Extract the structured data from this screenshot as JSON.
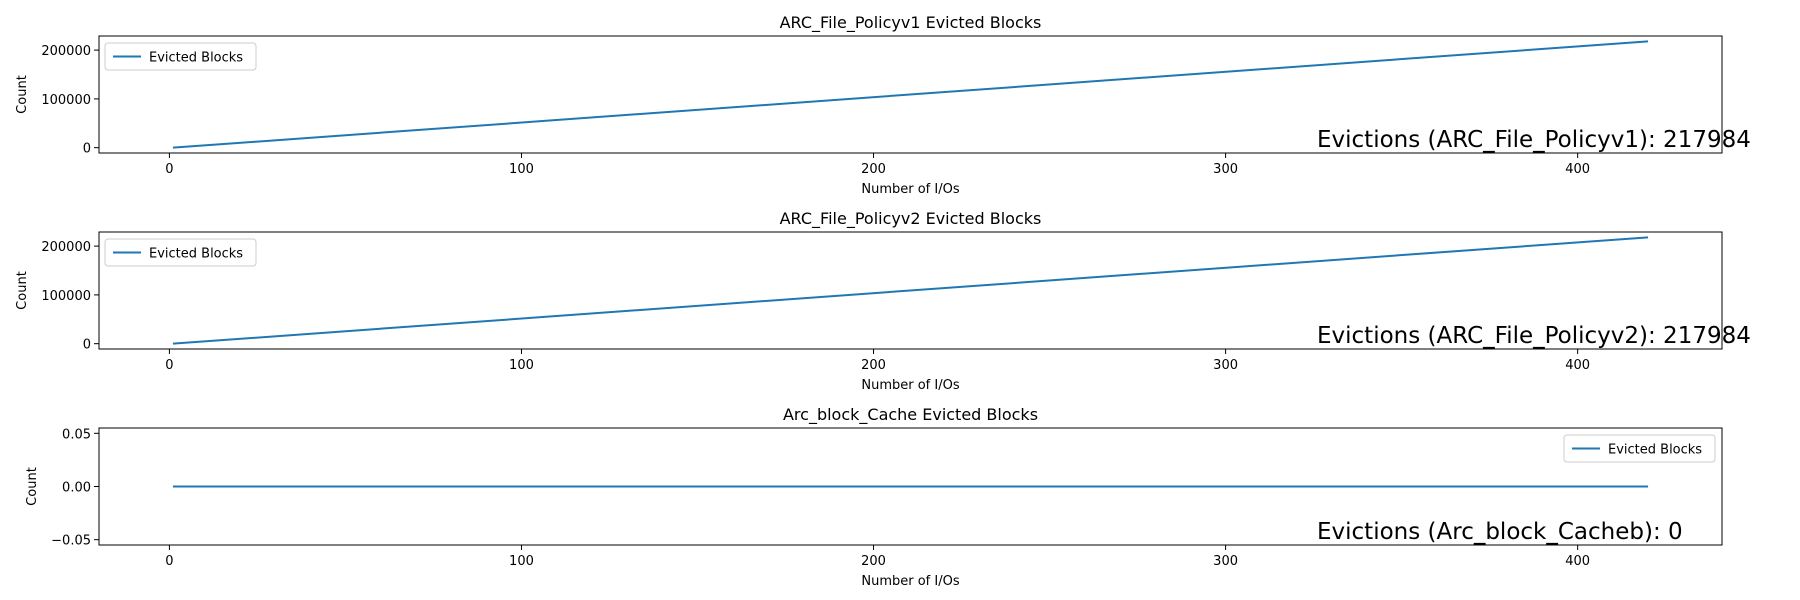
{
  "chart_data": [
    {
      "type": "line",
      "title": "ARC_File_Policyv1 Evicted Blocks",
      "xlabel": "Number of I/Os",
      "ylabel": "Count",
      "xlim": [
        -20,
        441
      ],
      "ylim": [
        -10900,
        228900
      ],
      "xticks": [
        0,
        100,
        200,
        300,
        400
      ],
      "xtick_labels": [
        "0",
        "100",
        "200",
        "300",
        "400"
      ],
      "yticks": [
        0,
        100000,
        200000
      ],
      "ytick_labels": [
        "0",
        "100000",
        "200000"
      ],
      "grid": false,
      "legend": "upper left",
      "series": [
        {
          "name": "Evicted Blocks",
          "color": "#1f77b4",
          "x": [
            1,
            420
          ],
          "y": [
            0,
            217984
          ]
        }
      ],
      "annotation": "Evictions (ARC_File_Policyv1): 217984"
    },
    {
      "type": "line",
      "title": "ARC_File_Policyv2 Evicted Blocks",
      "xlabel": "Number of I/Os",
      "ylabel": "Count",
      "xlim": [
        -20,
        441
      ],
      "ylim": [
        -10900,
        228900
      ],
      "xticks": [
        0,
        100,
        200,
        300,
        400
      ],
      "xtick_labels": [
        "0",
        "100",
        "200",
        "300",
        "400"
      ],
      "yticks": [
        0,
        100000,
        200000
      ],
      "ytick_labels": [
        "0",
        "100000",
        "200000"
      ],
      "grid": false,
      "legend": "upper left",
      "series": [
        {
          "name": "Evicted Blocks",
          "color": "#1f77b4",
          "x": [
            1,
            420
          ],
          "y": [
            0,
            217984
          ]
        }
      ],
      "annotation": "Evictions (ARC_File_Policyv2): 217984"
    },
    {
      "type": "line",
      "title": "Arc_block_Cache Evicted Blocks",
      "xlabel": "Number of I/Os",
      "ylabel": "Count",
      "xlim": [
        -20,
        441
      ],
      "ylim": [
        -0.055,
        0.055
      ],
      "xticks": [
        0,
        100,
        200,
        300,
        400
      ],
      "xtick_labels": [
        "0",
        "100",
        "200",
        "300",
        "400"
      ],
      "yticks": [
        -0.05,
        0,
        0.05
      ],
      "ytick_labels": [
        "−0.05",
        "0.00",
        "0.05"
      ],
      "grid": false,
      "legend": "upper right",
      "series": [
        {
          "name": "Evicted Blocks",
          "color": "#1f77b4",
          "x": [
            1,
            420
          ],
          "y": [
            0,
            0
          ]
        }
      ],
      "annotation": "Evictions (Arc_block_Cacheb): 0"
    }
  ]
}
